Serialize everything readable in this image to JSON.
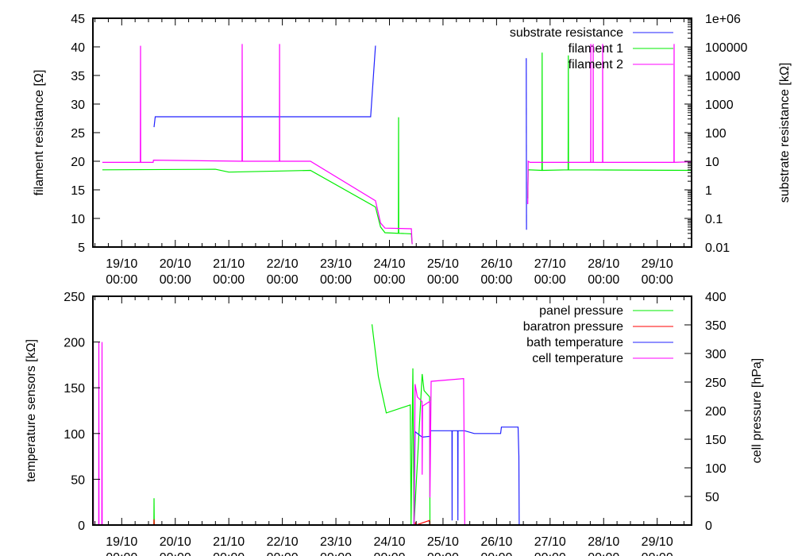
{
  "chart_data": [
    {
      "type": "line",
      "xlim": [
        "18/10 11:05",
        "29/10 15:20"
      ],
      "x_ticks": [
        "19/10",
        "20/10",
        "21/10",
        "22/10",
        "23/10",
        "24/10",
        "25/10",
        "26/10",
        "27/10",
        "28/10",
        "29/10"
      ],
      "x_tick_time": "00:00",
      "ylabel": "filament resistance [Ω]",
      "ylim": [
        5,
        45
      ],
      "y_ticks": [
        "5",
        "10",
        "15",
        "20",
        "25",
        "30",
        "35",
        "40",
        "45"
      ],
      "y2label": "substrate resistance [kΩ]",
      "y2lim": [
        0.01,
        1000000
      ],
      "y2_scale": "log",
      "y2_ticks": [
        "0.01",
        "0.1",
        "1",
        "10",
        "100",
        "1000",
        "10000",
        "100000",
        "1e+06"
      ],
      "legend_position": "top-right",
      "grid": false,
      "series": [
        {
          "name": "substrate resistance",
          "axis": "y2",
          "color": "#2222ff",
          "points": [
            [
              "19/10 14:30",
              155
            ],
            [
              "19/10 15:00",
              360
            ],
            [
              "23/10 15:35",
              360
            ],
            [
              "23/10 17:45",
              110000
            ],
            null,
            [
              "26/10 13:20",
              40000
            ],
            [
              "26/10 13:25",
              0.04
            ]
          ]
        },
        {
          "name": "filament 1",
          "axis": "y",
          "color": "#00ee00",
          "points": [
            [
              "18/10 15:20",
              18.5
            ],
            [
              "20/10 18:00",
              18.6
            ],
            [
              "21/10 00:00",
              18.1
            ],
            [
              "22/10 12:35",
              18.4
            ],
            [
              "23/10 17:45",
              12.0
            ],
            [
              "23/10 20:00",
              8.5
            ],
            [
              "23/10 22:00",
              7.5
            ],
            [
              "24/10 04:00",
              7.4
            ],
            [
              "24/10 04:05",
              27.7
            ],
            [
              "24/10 04:10",
              7.4
            ],
            [
              "24/10 09:50",
              7.3
            ],
            [
              "24/10 10:10",
              5.5
            ],
            null,
            [
              "26/10 14:00",
              13.5
            ],
            [
              "26/10 14:10",
              18.5
            ],
            [
              "26/10 20:20",
              18.4
            ],
            [
              "26/10 20:25",
              39.0
            ],
            [
              "26/10 20:30",
              18.4
            ],
            [
              "27/10 08:05",
              18.5
            ],
            [
              "27/10 08:10",
              38.5
            ],
            [
              "27/10 08:15",
              18.5
            ],
            [
              "29/10 15:20",
              18.4
            ]
          ]
        },
        {
          "name": "filament 2",
          "axis": "y",
          "color": "#ff00ff",
          "points": [
            [
              "18/10 15:20",
              19.8
            ],
            [
              "19/10 08:20",
              19.8
            ],
            [
              "19/10 08:25",
              40.2
            ],
            [
              "19/10 08:30",
              19.8
            ],
            [
              "19/10 14:05",
              19.8
            ],
            [
              "19/10 14:15",
              20.2
            ],
            [
              "21/10 05:55",
              20.0
            ],
            [
              "21/10 06:00",
              40.5
            ],
            [
              "21/10 06:05",
              20.0
            ],
            [
              "21/10 22:40",
              20.0
            ],
            [
              "21/10 22:45",
              40.5
            ],
            [
              "21/10 22:50",
              20.0
            ],
            [
              "22/10 12:35",
              20.0
            ],
            [
              "23/10 17:45",
              13.1
            ],
            [
              "23/10 20:00",
              9.2
            ],
            [
              "23/10 22:00",
              8.3
            ],
            [
              "24/10 09:50",
              8.2
            ],
            [
              "24/10 10:10",
              5.5
            ],
            null,
            [
              "26/10 14:00",
              12.5
            ],
            [
              "26/10 14:10",
              20.0
            ],
            [
              "26/10 15:00",
              19.8
            ],
            [
              "27/10 18:10",
              19.8
            ],
            [
              "27/10 18:14",
              40.5
            ],
            [
              "27/10 18:18",
              19.8
            ],
            [
              "27/10 19:14",
              19.8
            ],
            [
              "27/10 19:18",
              40.5
            ],
            [
              "27/10 19:22",
              19.8
            ],
            [
              "27/10 23:30",
              19.8
            ],
            [
              "27/10 23:34",
              40.5
            ],
            [
              "27/10 23:38",
              19.8
            ],
            [
              "29/10 07:30",
              19.8
            ],
            [
              "29/10 07:34",
              40.5
            ],
            [
              "29/10 07:38",
              19.8
            ],
            [
              "29/10 15:20",
              19.9
            ]
          ]
        }
      ]
    },
    {
      "type": "line",
      "xlim": [
        "18/10 11:05",
        "29/10 15:20"
      ],
      "x_ticks": [
        "19/10",
        "20/10",
        "21/10",
        "22/10",
        "23/10",
        "24/10",
        "25/10",
        "26/10",
        "27/10",
        "28/10",
        "29/10"
      ],
      "x_tick_time": "00:00",
      "ylabel": "temperature sensors [kΩ]",
      "ylim": [
        0,
        250
      ],
      "y_ticks": [
        "0",
        "50",
        "100",
        "150",
        "200",
        "250"
      ],
      "y2label": "cell pressure [hPa]",
      "y2lim": [
        0,
        400
      ],
      "y2_ticks": [
        "0",
        "50",
        "100",
        "150",
        "200",
        "250",
        "300",
        "350",
        "400"
      ],
      "legend_position": "top-right",
      "grid": false,
      "series": [
        {
          "name": "panel pressure",
          "axis": "y2",
          "color": "#00ee00",
          "points": [
            [
              "18/10 11:05",
              0
            ],
            [
              "19/10 14:25",
              0
            ],
            [
              "19/10 14:30",
              47
            ],
            [
              "19/10 14:35",
              0
            ],
            null,
            [
              "23/10 16:10",
              351
            ],
            [
              "23/10 19:00",
              260
            ],
            [
              "23/10 22:35",
              196
            ],
            [
              "24/10 09:20",
              210
            ],
            [
              "24/10 09:40",
              0
            ],
            [
              "24/10 10:30",
              274
            ],
            [
              "24/10 11:00",
              0
            ],
            [
              "24/10 14:40",
              264
            ],
            [
              "24/10 15:30",
              235
            ],
            [
              "24/10 18:00",
              224
            ],
            [
              "24/10 18:10",
              0
            ]
          ]
        },
        {
          "name": "baratron pressure",
          "axis": "y2",
          "color": "#ff0000",
          "points": [
            [
              "18/10 11:05",
              0
            ],
            [
              "19/10 14:25",
              0
            ],
            [
              "19/10 14:30",
              10
            ],
            [
              "19/10 14:35",
              0
            ],
            [
              "24/10 11:30",
              0
            ],
            [
              "24/10 11:40",
              5
            ],
            [
              "24/10 12:00",
              0
            ],
            [
              "24/10 18:00",
              8
            ],
            [
              "24/10 18:10",
              0
            ],
            [
              "29/10 15:20",
              0
            ]
          ]
        },
        {
          "name": "bath temperature",
          "axis": "y",
          "color": "#2222ff",
          "points": [
            [
              "18/10 11:05",
              0
            ],
            [
              "24/10 11:00",
              0
            ],
            [
              "24/10 11:30",
              102
            ],
            [
              "24/10 14:40",
              96
            ],
            [
              "24/10 18:10",
              97
            ],
            [
              "24/10 18:30",
              103
            ],
            [
              "25/10 04:00",
              103
            ],
            [
              "25/10 04:05",
              5
            ],
            [
              "25/10 04:10",
              103
            ],
            [
              "25/10 06:35",
              103
            ],
            [
              "25/10 06:40",
              5
            ],
            [
              "25/10 06:45",
              103
            ],
            [
              "25/10 09:40",
              103
            ],
            [
              "25/10 14:00",
              100
            ],
            [
              "26/10 01:50",
              100
            ],
            [
              "26/10 02:10",
              107
            ],
            [
              "26/10 09:40",
              107
            ],
            [
              "26/10 10:00",
              75
            ],
            [
              "26/10 10:10",
              0
            ],
            [
              "29/10 15:20",
              0
            ]
          ]
        },
        {
          "name": "cell temperature",
          "axis": "y",
          "color": "#ff00ff",
          "points": [
            [
              "18/10 11:10",
              0
            ],
            [
              "18/10 11:15",
              200
            ],
            [
              "18/10 11:20",
              0
            ],
            [
              "18/10 13:40",
              0
            ],
            [
              "18/10 13:45",
              200
            ],
            [
              "18/10 13:50",
              0
            ],
            [
              "18/10 15:05",
              0
            ],
            [
              "18/10 15:10",
              200
            ],
            [
              "18/10 15:15",
              0
            ],
            null,
            [
              "24/10 11:00",
              0
            ],
            [
              "24/10 11:30",
              154
            ],
            [
              "24/10 12:30",
              140
            ],
            [
              "24/10 14:35",
              135
            ],
            [
              "24/10 14:40",
              55
            ],
            [
              "24/10 14:50",
              130
            ],
            [
              "24/10 18:00",
              135
            ],
            [
              "24/10 18:10",
              30
            ],
            [
              "24/10 18:40",
              157
            ],
            [
              "25/10 09:15",
              160
            ],
            [
              "25/10 09:45",
              0
            ]
          ]
        }
      ]
    }
  ]
}
